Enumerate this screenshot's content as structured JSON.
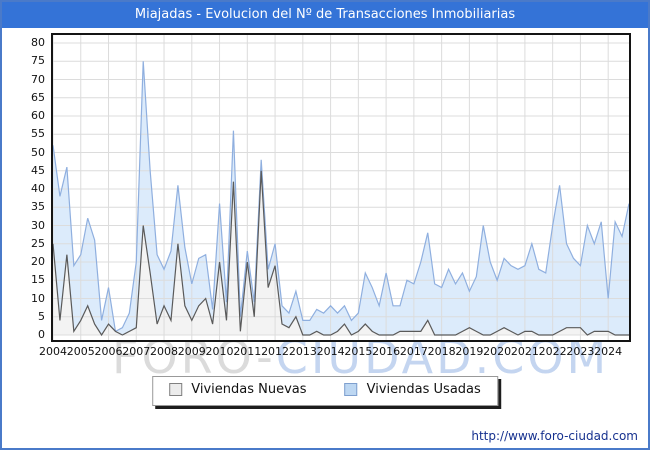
{
  "window": {
    "title": "Miajadas - Evolucion del Nº de Transacciones Inmobiliarias"
  },
  "watermark": {
    "part1": "FORO-",
    "part2": "CIUDAD.COM"
  },
  "footer": {
    "url": "http://www.foro-ciudad.com"
  },
  "legend": {
    "items": [
      {
        "label": "Viviendas Nuevas",
        "swatch_fill": "#ececec",
        "swatch_border": "#808080"
      },
      {
        "label": "Viviendas Usadas",
        "swatch_fill": "#bdd7f2",
        "swatch_border": "#7e9fce"
      }
    ]
  },
  "colors": {
    "frame": "#4a7ac9",
    "titlebar_bg": "#3473d7",
    "titlebar_text": "#ffffff",
    "grid": "#dcdcdc",
    "plot_border": "#141414",
    "axis_text": "#111111",
    "url_text": "#16318f",
    "nuevas_line": "#5a5a5a",
    "nuevas_fill": "#f3f3f3",
    "usadas_line": "#8fafdf",
    "usadas_fill": "#dcebfb"
  },
  "chart_data": {
    "type": "area",
    "stacked": true,
    "title": "Miajadas - Evolucion del Nº de Transacciones Inmobiliarias",
    "xlabel": "",
    "ylabel": "",
    "ylim": [
      0,
      80
    ],
    "ytick_step": 5,
    "yticks": [
      0,
      5,
      10,
      15,
      20,
      25,
      30,
      35,
      40,
      45,
      50,
      55,
      60,
      65,
      70,
      75,
      80
    ],
    "grid": true,
    "legend_position": "bottom",
    "points_per_year": 4,
    "x_labels": [
      "2004",
      "2005",
      "2006",
      "2007",
      "2008",
      "2009",
      "2010",
      "2011",
      "2012",
      "2013",
      "2014",
      "2015",
      "2016",
      "2017",
      "2018",
      "2019",
      "2020",
      "2021",
      "2022",
      "2023",
      "2024"
    ],
    "series": [
      {
        "name": "Viviendas Nuevas",
        "line": "#5a5a5a",
        "fill": "#f3f3f3",
        "values": [
          25,
          4,
          22,
          1,
          4,
          8,
          3,
          0,
          3,
          1,
          0,
          1,
          2,
          30,
          17,
          3,
          8,
          4,
          25,
          8,
          4,
          8,
          10,
          3,
          20,
          4,
          42,
          1,
          20,
          5,
          45,
          13,
          19,
          3,
          2,
          5,
          0,
          0,
          1,
          0,
          0,
          1,
          3,
          0,
          1,
          3,
          1,
          0,
          0,
          0,
          1,
          1,
          1,
          1,
          4,
          0,
          0,
          0,
          0,
          1,
          2,
          1,
          0,
          0,
          1,
          2,
          1,
          0,
          1,
          1,
          0,
          0,
          0,
          1,
          2,
          2,
          2,
          0,
          1,
          1,
          1,
          0,
          0,
          0
        ]
      },
      {
        "name": "Viviendas Usadas",
        "line": "#8fafdf",
        "fill": "#dcebfb",
        "values": [
          27,
          34,
          24,
          18,
          18,
          24,
          23,
          4,
          10,
          0,
          2,
          5,
          18,
          45,
          28,
          19,
          10,
          19,
          16,
          16,
          10,
          13,
          12,
          4,
          16,
          5,
          14,
          4,
          3,
          4,
          3,
          5,
          6,
          5,
          4,
          7,
          4,
          4,
          6,
          6,
          8,
          5,
          5,
          4,
          5,
          14,
          12,
          8,
          17,
          8,
          7,
          14,
          13,
          19,
          24,
          14,
          13,
          18,
          14,
          16,
          10,
          15,
          30,
          20,
          14,
          19,
          18,
          18,
          18,
          24,
          18,
          17,
          30,
          40,
          23,
          19,
          17,
          30,
          24,
          30,
          9,
          31,
          27,
          36
        ]
      }
    ]
  }
}
